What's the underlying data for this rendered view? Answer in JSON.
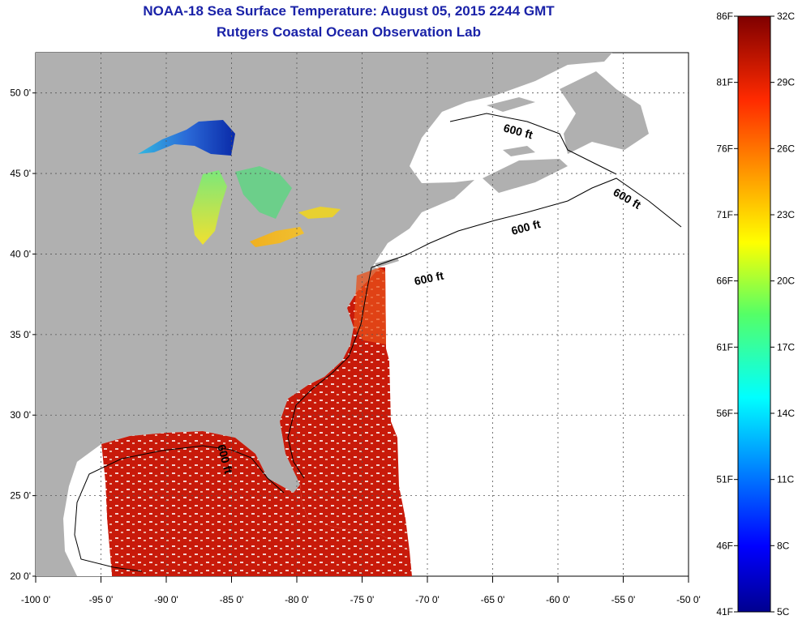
{
  "title": "NOAA-18 Sea Surface Temperature:  August 05, 2015 2244 GMT",
  "subtitle": "Rutgers Coastal Ocean Observation Lab",
  "map": {
    "lon_range": [
      -100,
      -50
    ],
    "lat_range": [
      20,
      52.5
    ],
    "x_tick_labels": [
      "-100 0'",
      "-95 0'",
      "-90 0'",
      "-85 0'",
      "-80 0'",
      "-75 0'",
      "-70 0'",
      "-65 0'",
      "-60 0'",
      "-55 0'",
      "-50 0'"
    ],
    "y_tick_labels": [
      "20 0'",
      "25 0'",
      "30 0'",
      "35 0'",
      "40 0'",
      "45 0'",
      "50 0'"
    ],
    "contour_label": "600 ft",
    "colors": {
      "land": "#b0b0b0",
      "no_data": "#ffffff",
      "grid": "#555555"
    }
  },
  "colorbar": {
    "celsius_labels": [
      "32C",
      "29C",
      "26C",
      "23C",
      "20C",
      "17C",
      "14C",
      "11C",
      "8C",
      "5C"
    ],
    "fahrenheit_labels": [
      "86F",
      "81F",
      "76F",
      "71F",
      "66F",
      "61F",
      "56F",
      "51F",
      "46F",
      "41F"
    ],
    "celsius_range": [
      5,
      32
    ],
    "fahrenheit_range": [
      41,
      86
    ]
  }
}
